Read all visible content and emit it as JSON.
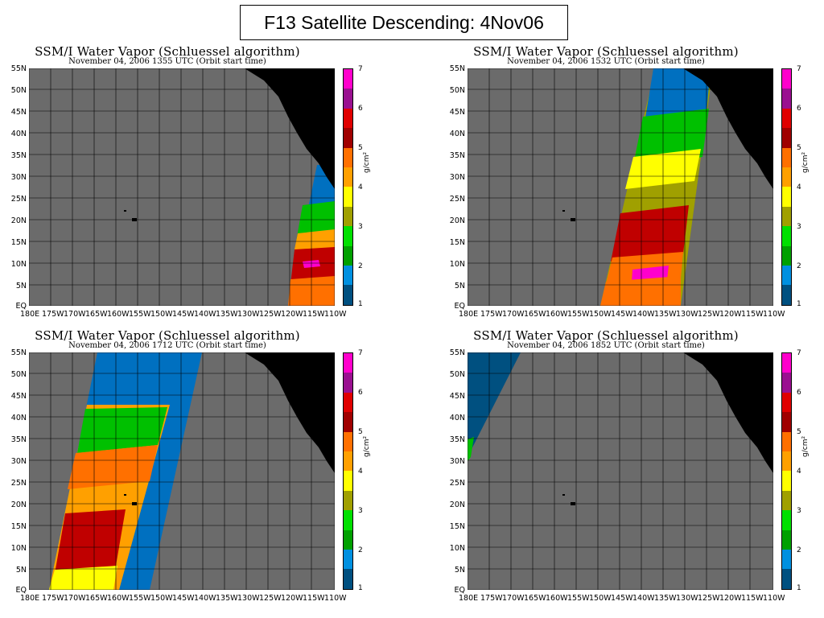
{
  "main_title": "F13 Satellite Descending: 4Nov06",
  "panels": [
    {
      "title": "SSM/I Water Vapor (Schluessel algorithm)",
      "subtitle": "November 04, 2006   1355 UTC   (Orbit start time)"
    },
    {
      "title": "SSM/I Water Vapor (Schluessel algorithm)",
      "subtitle": "November 04, 2006   1532 UTC   (Orbit start time)"
    },
    {
      "title": "SSM/I Water Vapor (Schluessel algorithm)",
      "subtitle": "November 04, 2006   1712 UTC   (Orbit start time)"
    },
    {
      "title": "SSM/I Water Vapor (Schluessel algorithm)",
      "subtitle": "November 04, 2006   1852 UTC   (Orbit start time)"
    }
  ],
  "lat_labels": [
    "55N",
    "50N",
    "45N",
    "40N",
    "35N",
    "30N",
    "25N",
    "20N",
    "15N",
    "10N",
    "5N",
    "EQ"
  ],
  "lon_labels": [
    "180E",
    "175W",
    "170W",
    "165W",
    "160W",
    "155W",
    "150W",
    "145W",
    "140W",
    "135W",
    "130W",
    "125W",
    "120W",
    "115W",
    "110W"
  ],
  "colorbar": {
    "ticks": [
      "7",
      "6",
      "5",
      "4",
      "3",
      "2",
      "1"
    ],
    "unit": "g/cm²",
    "colors": [
      "#ff00cc",
      "#9a1090",
      "#e00000",
      "#a00000",
      "#ff7000",
      "#ffa000",
      "#ffff00",
      "#a0a000",
      "#00e000",
      "#00a000",
      "#0090e0",
      "#005080"
    ]
  },
  "map_colors": {
    "ocean": "#6b6b6b",
    "land": "#000000",
    "grid": "#000000"
  }
}
